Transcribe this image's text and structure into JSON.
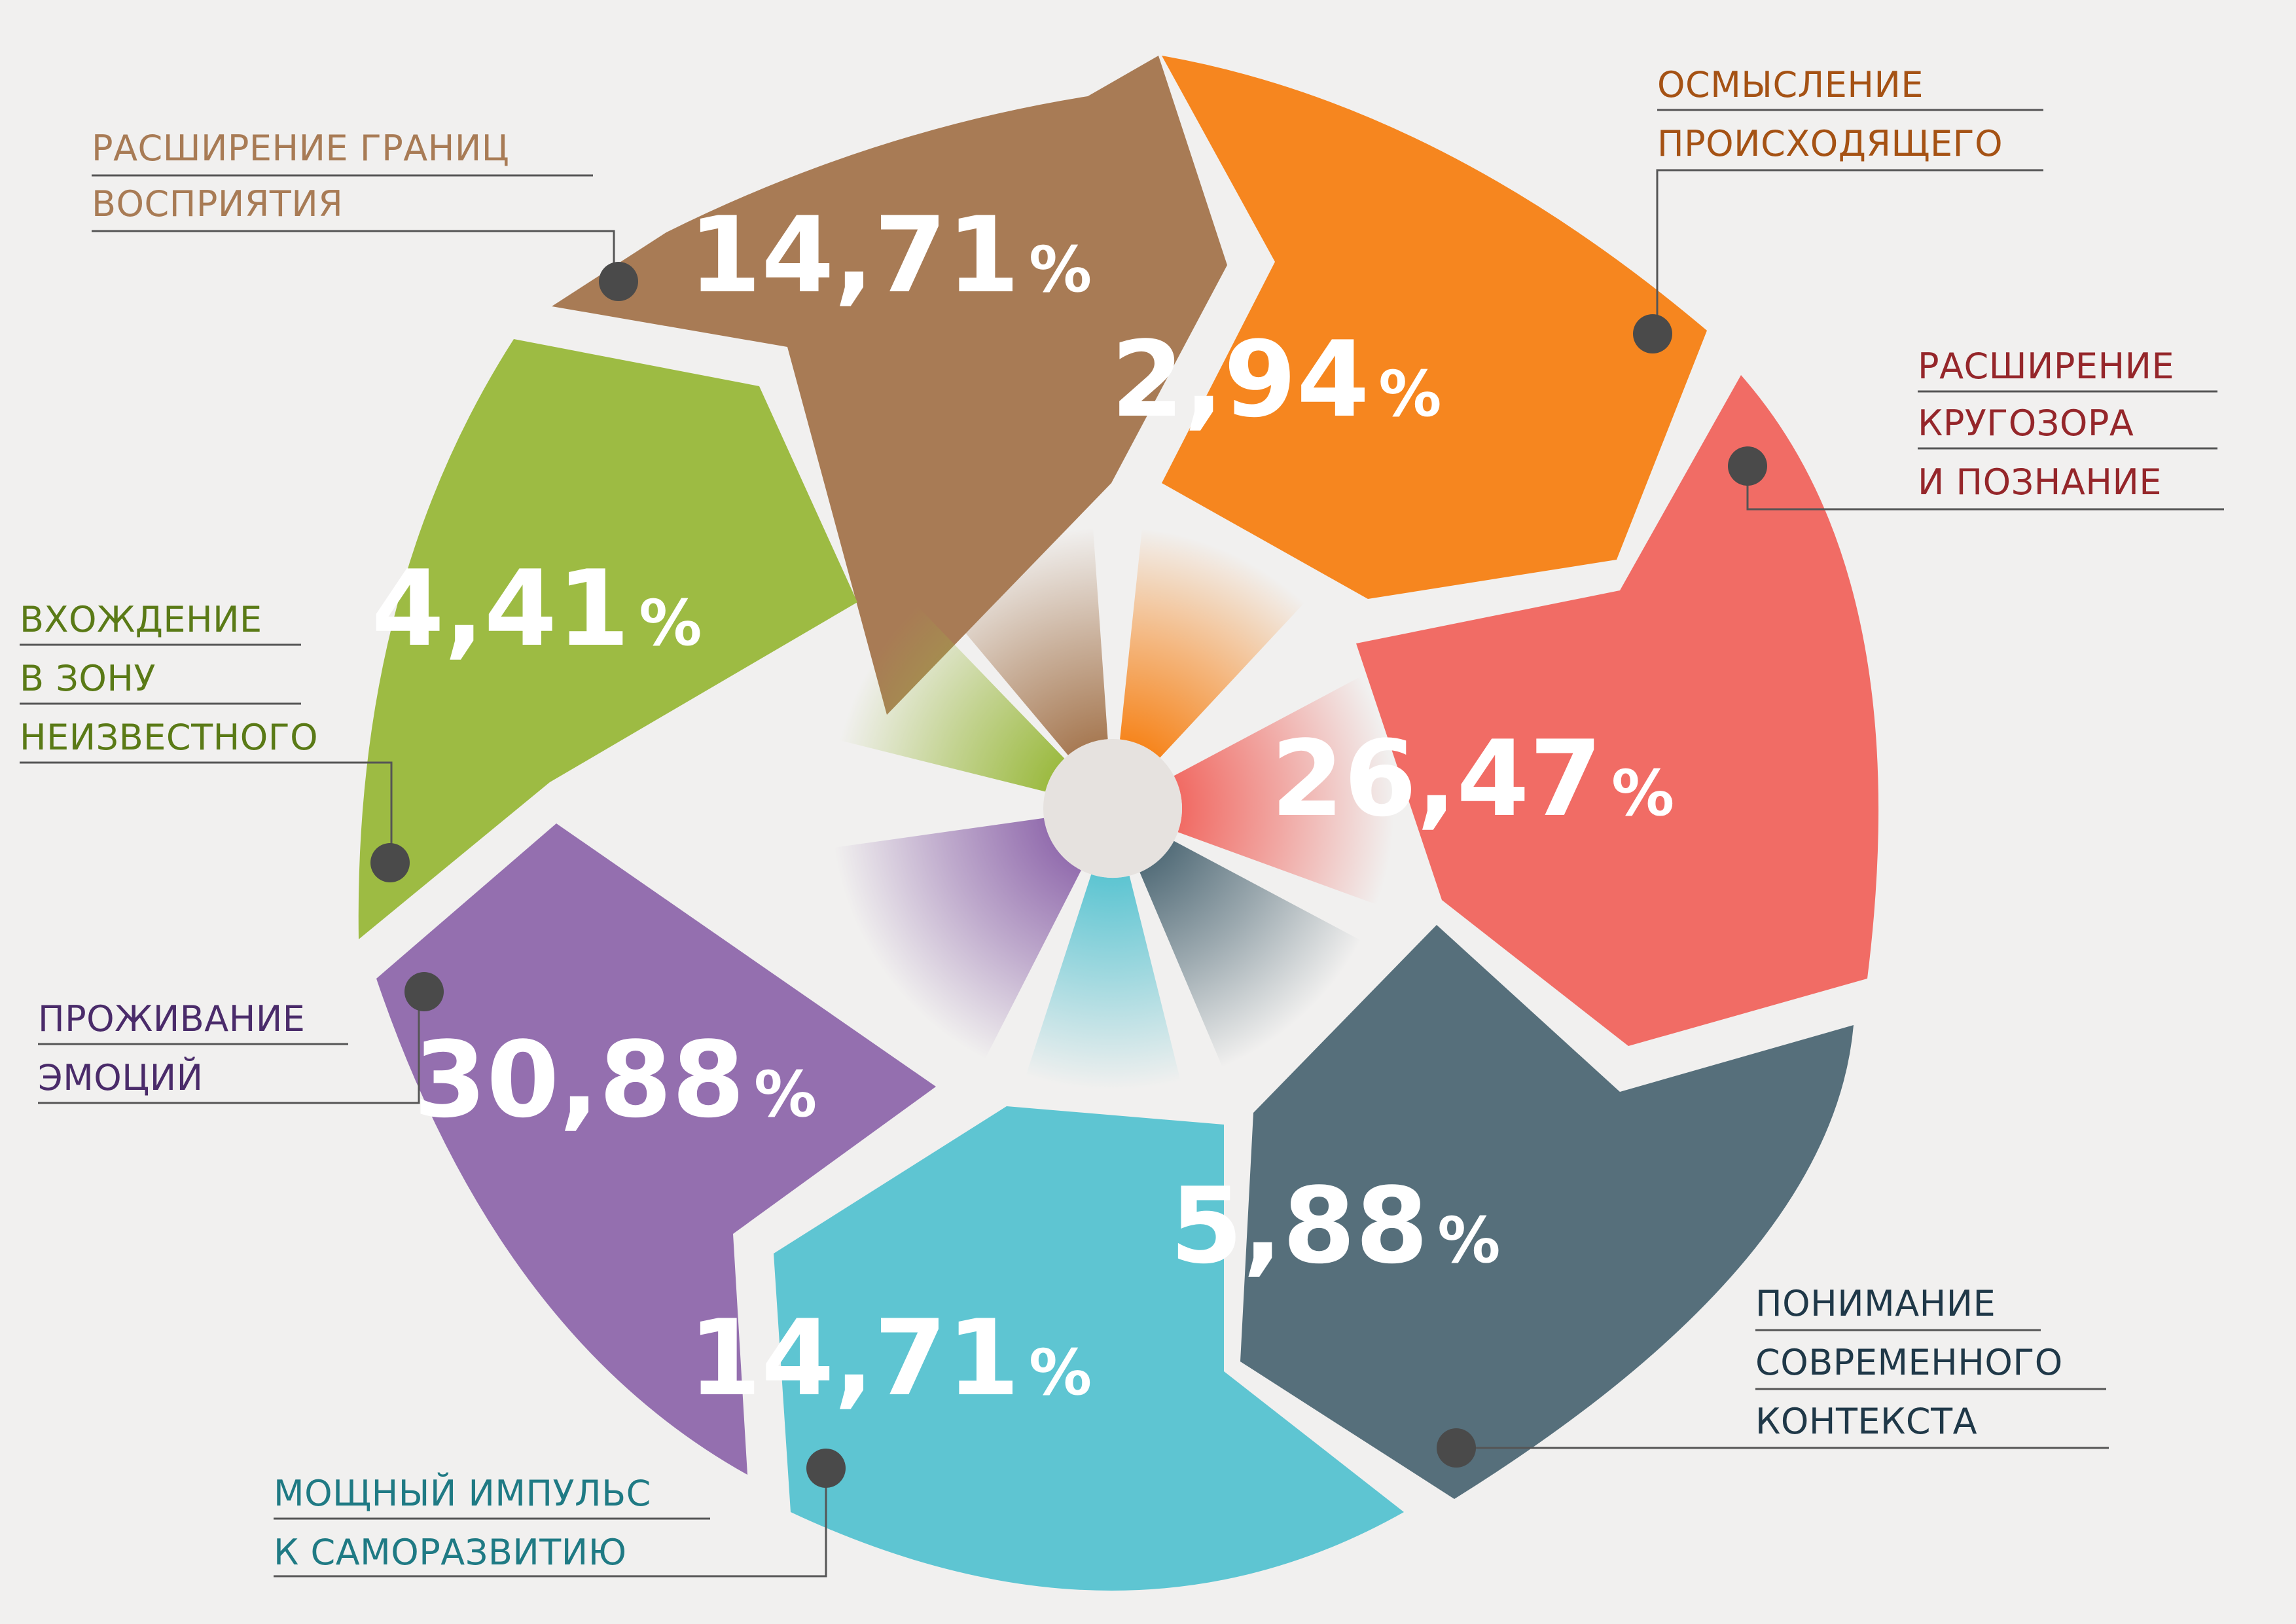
{
  "chart_data": {
    "type": "pie",
    "segments": [
      {
        "key": "top",
        "value": 14.71,
        "display": "14,71",
        "color": "#a87b55",
        "caption": [
          "РАСШИРЕНИЕ ГРАНИЦ",
          "ВОСПРИЯТИЯ"
        ]
      },
      {
        "key": "top-right",
        "value": 2.94,
        "display": "2,94",
        "color": "#f6861f",
        "caption": [
          "ОСМЫСЛЕНИЕ",
          "ПРОИСХОДЯЩЕГО"
        ]
      },
      {
        "key": "right",
        "value": 26.47,
        "display": "26,47",
        "color": "#f16c65",
        "caption": [
          "РАСШИРЕНИЕ",
          "КРУГОЗОРА",
          "И ПОЗНАНИЕ"
        ]
      },
      {
        "key": "bottom-right",
        "value": 5.88,
        "display": "5,88",
        "color": "#566f7b",
        "caption": [
          "ПОНИМАНИЕ",
          "СОВРЕМЕННОГО",
          "КОНТЕКСТА"
        ]
      },
      {
        "key": "bottom",
        "value": 14.71,
        "display": "14,71",
        "color": "#5ec5d2",
        "caption": [
          "МОЩНЫЙ ИМПУЛЬС",
          "К САМОРАЗВИТИЮ"
        ]
      },
      {
        "key": "bottom-left",
        "value": 30.88,
        "display": "30,88",
        "color": "#946faf",
        "caption": [
          "ПРОЖИВАНИЕ",
          "ЭМОЦИЙ"
        ]
      },
      {
        "key": "left",
        "value": 4.41,
        "display": "4,41",
        "color": "#9dbb43",
        "caption": [
          "ВХОЖДЕНИЕ",
          "В ЗОНУ",
          "НЕИЗВЕСТНОГО"
        ]
      }
    ],
    "percent_sign": "%",
    "caption_colors": {
      "top": "#a87b55",
      "top-right": "#a55214",
      "right": "#95262a",
      "bottom-right": "#1f3848",
      "bottom": "#1f7a84",
      "bottom-left": "#4a2b6a",
      "left": "#5a7a16"
    }
  }
}
